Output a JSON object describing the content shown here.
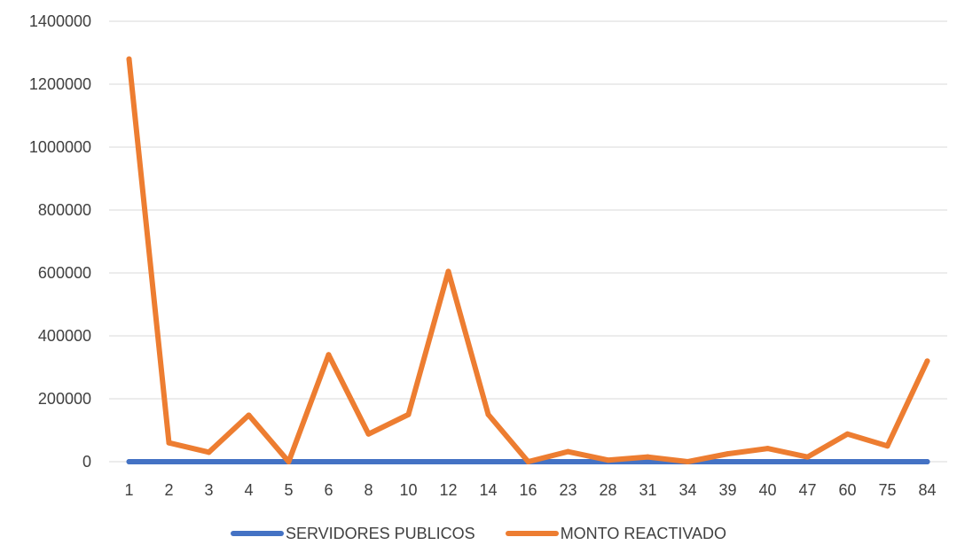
{
  "colors": {
    "series_1": "#4472C4",
    "series_2": "#ED7D31",
    "grid": "#d9d9d9",
    "tick_text": "#404040"
  },
  "chart_data": {
    "type": "line",
    "title": "",
    "xlabel": "",
    "ylabel": "",
    "categories": [
      "1",
      "2",
      "3",
      "4",
      "5",
      "6",
      "8",
      "10",
      "12",
      "14",
      "16",
      "23",
      "28",
      "31",
      "34",
      "39",
      "40",
      "47",
      "60",
      "75",
      "84"
    ],
    "ylim": [
      0,
      1400000
    ],
    "yticks": [
      "0",
      "200000",
      "400000",
      "600000",
      "800000",
      "1000000",
      "1200000",
      "1400000"
    ],
    "grid": true,
    "legend_position": "bottom",
    "series": [
      {
        "name": "SERVIDORES PUBLICOS",
        "values": [
          1,
          2,
          3,
          4,
          5,
          6,
          8,
          10,
          12,
          14,
          16,
          23,
          28,
          31,
          34,
          39,
          40,
          47,
          60,
          75,
          84
        ]
      },
      {
        "name": "MONTO REACTIVADO",
        "values": [
          1280000,
          60000,
          30000,
          148000,
          0,
          340000,
          88000,
          150000,
          605000,
          150000,
          0,
          32000,
          5000,
          15000,
          0,
          25000,
          42000,
          15000,
          88000,
          50000,
          320000
        ]
      }
    ]
  }
}
